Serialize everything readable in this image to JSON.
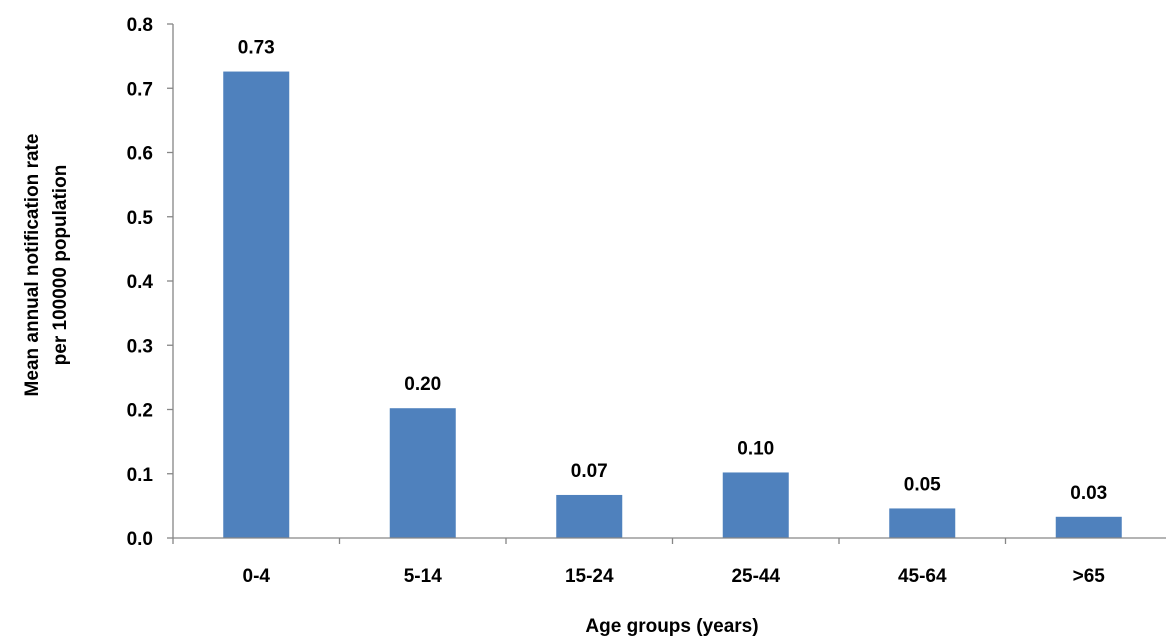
{
  "chart_data": {
    "type": "bar",
    "categories": [
      "0-4",
      "5-14",
      "15-24",
      "25-44",
      "45-64",
      ">65"
    ],
    "values": [
      0.726,
      0.202,
      0.067,
      0.102,
      0.046,
      0.033
    ],
    "data_labels": [
      "0.73",
      "0.20",
      "0.07",
      "0.10",
      "0.05",
      "0.03"
    ],
    "ylim": [
      0,
      0.8
    ],
    "yticks": [
      0.0,
      0.1,
      0.2,
      0.3,
      0.4,
      0.5,
      0.6,
      0.7,
      0.8
    ],
    "ytick_labels": [
      "0.0",
      "0.1",
      "0.2",
      "0.3",
      "0.4",
      "0.5",
      "0.6",
      "0.7",
      "0.8"
    ],
    "xlabel": "Age groups (years)",
    "ylabel_lines": [
      "Mean annual notification rate",
      "per 100000 population"
    ],
    "grid": false,
    "legend": "none",
    "bar_color": "#4f81bd"
  }
}
